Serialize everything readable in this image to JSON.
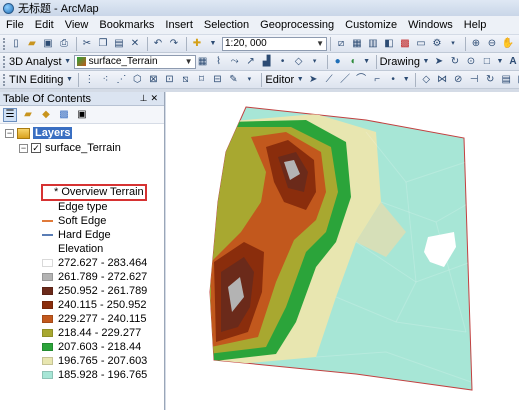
{
  "window": {
    "title": "无标题 - ArcMap"
  },
  "menu": [
    "File",
    "Edit",
    "View",
    "Bookmarks",
    "Insert",
    "Selection",
    "Geoprocessing",
    "Customize",
    "Windows",
    "Help"
  ],
  "toolbar": {
    "scale_value": "1:20, 000",
    "analyst_label": "3D Analyst",
    "layer_combo": "surface_Terrain",
    "drawing_label": "Drawing",
    "editor_label": "Editor",
    "tin_editing_label": "TIN Editing"
  },
  "toc": {
    "title": "Table Of Contents",
    "root_label": "Layers",
    "layer_name": "surface_Terrain",
    "overview_label": "* Overview Terrain",
    "edge_type_label": "Edge type",
    "soft_edge_label": "Soft Edge",
    "hard_edge_label": "Hard Edge",
    "elevation_label": "Elevation",
    "legend": [
      {
        "label": "272.627 - 283.464",
        "color": "#ffffff"
      },
      {
        "label": "261.789 - 272.627",
        "color": "#b3b3b3"
      },
      {
        "label": "250.952 - 261.789",
        "color": "#6b2a1a"
      },
      {
        "label": "240.115 - 250.952",
        "color": "#8a2d0c"
      },
      {
        "label": "229.277 - 240.115",
        "color": "#c2581d"
      },
      {
        "label": "218.44 - 229.277",
        "color": "#a8a830"
      },
      {
        "label": "207.603 - 218.44",
        "color": "#2ba43a"
      },
      {
        "label": "196.765 - 207.603",
        "color": "#e8e6b0"
      },
      {
        "label": "185.928 - 196.765",
        "color": "#a7e6d6"
      }
    ],
    "soft_edge_color": "#e07a3a",
    "hard_edge_color": "#5a7db5"
  }
}
